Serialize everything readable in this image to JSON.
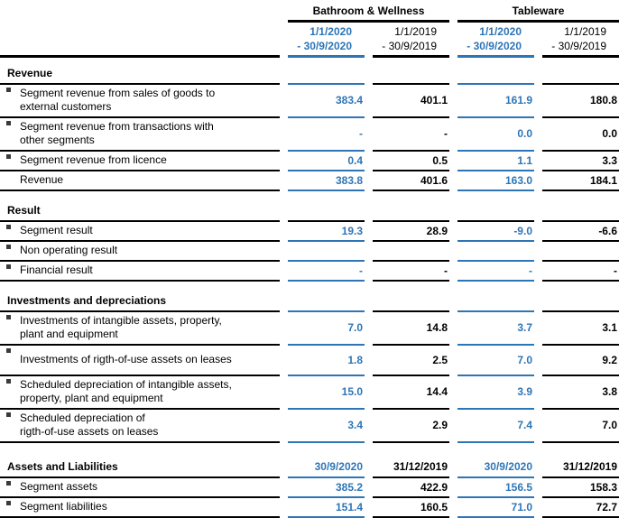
{
  "colors": {
    "accent_blue": "#2E75B6",
    "rule_black": "#000000",
    "bullet_gray": "#3A3A3A"
  },
  "column_groups": [
    "Bathroom & Wellness",
    "Tableware"
  ],
  "period_headers": [
    {
      "text": "1/1/2020\n- 30/9/2020",
      "current": true
    },
    {
      "text": "1/1/2019\n- 30/9/2019",
      "current": false
    },
    {
      "text": "1/1/2020\n- 30/9/2020",
      "current": true
    },
    {
      "text": "1/1/2019\n- 30/9/2019",
      "current": false
    }
  ],
  "sections": [
    {
      "title": "Revenue",
      "rows": [
        {
          "bullet": true,
          "label": "Segment revenue from sales of goods to\nexternal customers",
          "values": [
            "383.4",
            "401.1",
            "161.9",
            "180.8"
          ]
        },
        {
          "bullet": true,
          "label": "Segment revenue from transactions with\nother segments",
          "values": [
            "-",
            "-",
            "0.0",
            "0.0"
          ]
        },
        {
          "bullet": true,
          "label": "Segment revenue from licence",
          "values": [
            "0.4",
            "0.5",
            "1.1",
            "3.3"
          ]
        },
        {
          "bullet": false,
          "label": "Revenue",
          "values": [
            "383.8",
            "401.6",
            "163.0",
            "184.1"
          ]
        }
      ]
    },
    {
      "title": "Result",
      "rows": [
        {
          "bullet": true,
          "label": "Segment result",
          "values": [
            "19.3",
            "28.9",
            "-9.0",
            "-6.6"
          ]
        },
        {
          "bullet": true,
          "label": "Non operating result",
          "values": [
            "",
            "",
            "",
            ""
          ]
        },
        {
          "bullet": true,
          "label": "Financial result",
          "values": [
            "-",
            "-",
            "-",
            "-"
          ]
        }
      ]
    },
    {
      "title": "Investments and depreciations",
      "rows": [
        {
          "bullet": true,
          "label": "Investments of intangible assets, property,\nplant and equipment",
          "values": [
            "7.0",
            "14.8",
            "3.7",
            "3.1"
          ]
        },
        {
          "bullet": true,
          "label": "Investments of rigth-of-use assets on leases",
          "values": [
            "1.8",
            "2.5",
            "7.0",
            "9.2"
          ]
        },
        {
          "bullet": true,
          "label": "Scheduled depreciation of intangible assets,\nproperty, plant and equipment",
          "values": [
            "15.0",
            "14.4",
            "3.9",
            "3.8"
          ]
        },
        {
          "bullet": true,
          "label": "Scheduled depreciation of\nrigth-of-use assets  on leases",
          "values": [
            "3.4",
            "2.9",
            "7.4",
            "7.0"
          ]
        }
      ]
    },
    {
      "title": "Assets and Liabilities",
      "column_headers": [
        {
          "text": "30/9/2020",
          "current": true
        },
        {
          "text": "31/12/2019",
          "current": false
        },
        {
          "text": "30/9/2020",
          "current": true
        },
        {
          "text": "31/12/2019",
          "current": false
        }
      ],
      "rows": [
        {
          "bullet": true,
          "label": "Segment assets",
          "values": [
            "385.2",
            "422.9",
            "156.5",
            "158.3"
          ]
        },
        {
          "bullet": true,
          "label": "Segment liabilities",
          "values": [
            "151.4",
            "160.5",
            "71.0",
            "72.7"
          ]
        }
      ]
    }
  ]
}
